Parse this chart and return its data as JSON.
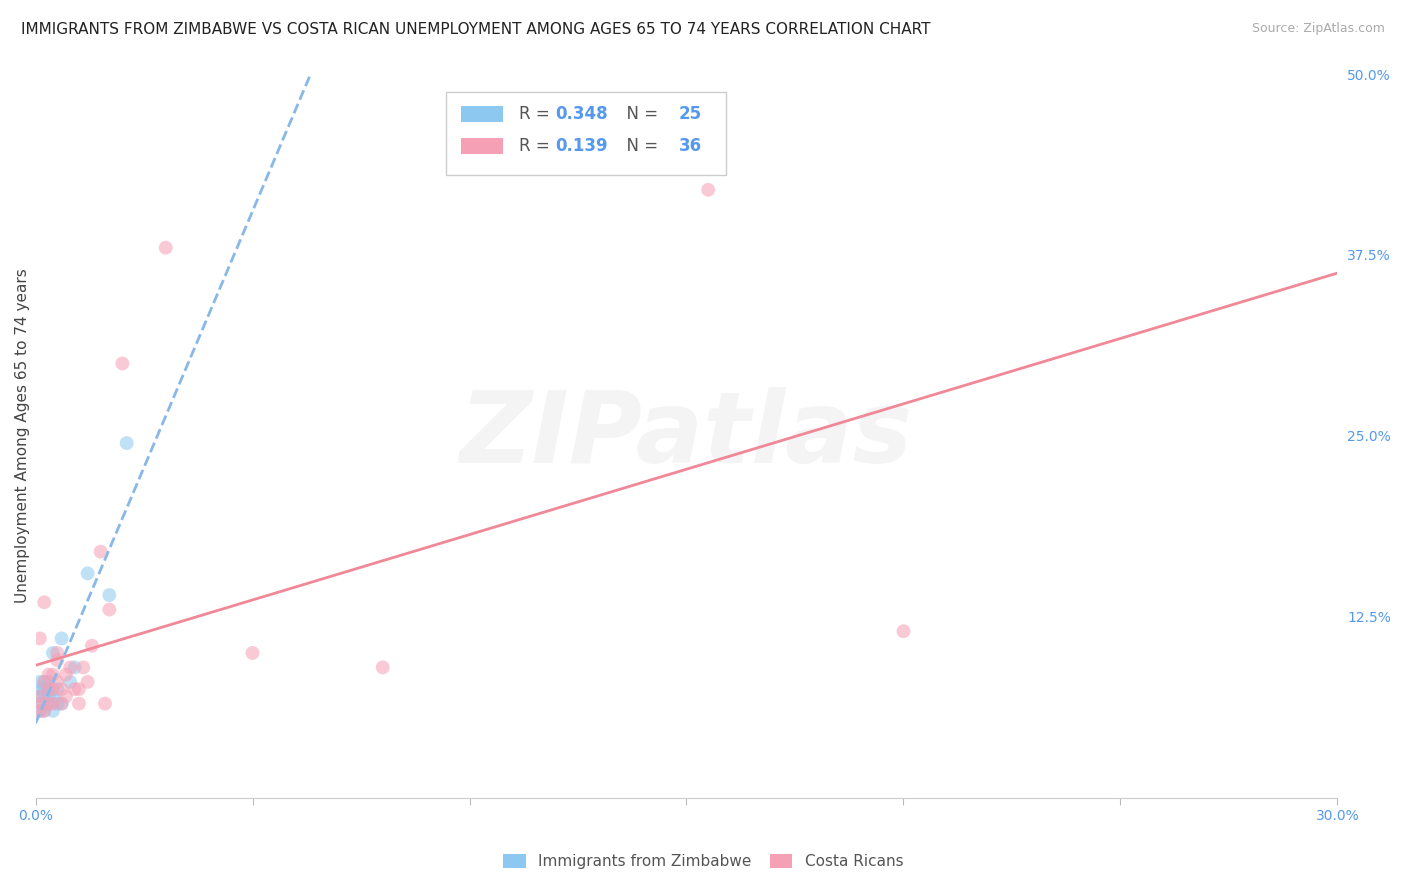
{
  "title": "IMMIGRANTS FROM ZIMBABWE VS COSTA RICAN UNEMPLOYMENT AMONG AGES 65 TO 74 YEARS CORRELATION CHART",
  "source": "Source: ZipAtlas.com",
  "ylabel": "Unemployment Among Ages 65 to 74 years",
  "xlim": [
    0.0,
    0.3
  ],
  "ylim": [
    0.0,
    0.5
  ],
  "xticks": [
    0.0,
    0.05,
    0.1,
    0.15,
    0.2,
    0.25,
    0.3
  ],
  "xticklabels": [
    "0.0%",
    "",
    "",
    "",
    "",
    "",
    "30.0%"
  ],
  "yticks_right": [
    0.0,
    0.125,
    0.25,
    0.375,
    0.5
  ],
  "yticklabels_right": [
    "",
    "12.5%",
    "25.0%",
    "37.5%",
    "50.0%"
  ],
  "blue_color": "#8DC8F0",
  "pink_color": "#F5A0B5",
  "blue_line_color": "#89B8E8",
  "pink_line_color": "#F08898",
  "r_blue": "0.348",
  "n_blue": "25",
  "r_pink": "0.139",
  "n_pink": "36",
  "legend_label_blue": "Immigrants from Zimbabwe",
  "legend_label_pink": "Costa Ricans",
  "watermark_text": "ZIPatlas",
  "blue_x": [
    0.001,
    0.001,
    0.001,
    0.001,
    0.0015,
    0.002,
    0.002,
    0.002,
    0.002,
    0.003,
    0.003,
    0.003,
    0.003,
    0.004,
    0.004,
    0.004,
    0.005,
    0.005,
    0.006,
    0.006,
    0.008,
    0.009,
    0.012,
    0.017,
    0.021
  ],
  "blue_y": [
    0.06,
    0.07,
    0.075,
    0.08,
    0.065,
    0.06,
    0.07,
    0.075,
    0.08,
    0.065,
    0.07,
    0.075,
    0.08,
    0.06,
    0.07,
    0.1,
    0.065,
    0.075,
    0.065,
    0.11,
    0.08,
    0.09,
    0.155,
    0.14,
    0.245
  ],
  "pink_x": [
    0.001,
    0.001,
    0.001,
    0.0015,
    0.002,
    0.002,
    0.002,
    0.003,
    0.003,
    0.003,
    0.004,
    0.004,
    0.004,
    0.005,
    0.005,
    0.005,
    0.006,
    0.006,
    0.007,
    0.007,
    0.008,
    0.009,
    0.01,
    0.01,
    0.011,
    0.012,
    0.013,
    0.015,
    0.016,
    0.017,
    0.02,
    0.03,
    0.05,
    0.08,
    0.155,
    0.2
  ],
  "pink_y": [
    0.06,
    0.07,
    0.11,
    0.065,
    0.06,
    0.08,
    0.135,
    0.065,
    0.075,
    0.085,
    0.065,
    0.075,
    0.085,
    0.08,
    0.095,
    0.1,
    0.065,
    0.075,
    0.07,
    0.085,
    0.09,
    0.075,
    0.065,
    0.075,
    0.09,
    0.08,
    0.105,
    0.17,
    0.065,
    0.13,
    0.3,
    0.38,
    0.1,
    0.09,
    0.42,
    0.115
  ],
  "title_fontsize": 11,
  "source_fontsize": 9,
  "axis_label_fontsize": 11,
  "tick_fontsize": 10,
  "watermark_alpha": 0.13,
  "watermark_fontsize": 72,
  "scatter_size": 100,
  "scatter_alpha": 0.55,
  "background_color": "#ffffff",
  "grid_color": "#dddddd",
  "tick_color": "#5599EE",
  "text_color": "#444444",
  "accent_color": "#5599EE"
}
